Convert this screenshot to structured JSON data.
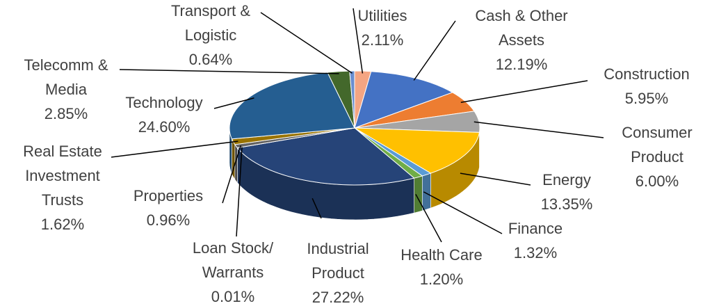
{
  "chart_data": {
    "type": "pie",
    "title": "",
    "style": "3d",
    "start": "12 o'clock",
    "direction": "clockwise",
    "slices": [
      {
        "name": "Utilities",
        "value": 2.11,
        "label": "Utilities",
        "value_label": "2.11%",
        "color": "#F4A582"
      },
      {
        "name": "Cash & Other Assets",
        "value": 12.19,
        "label": "Cash & Other|Assets",
        "value_label": "12.19%",
        "color": "#4472C4"
      },
      {
        "name": "Construction",
        "value": 5.95,
        "label": "Construction",
        "value_label": "5.95%",
        "color": "#ED7D31"
      },
      {
        "name": "Consumer Product",
        "value": 6.0,
        "label": "Consumer|Product",
        "value_label": "6.00%",
        "color": "#A5A5A5"
      },
      {
        "name": "Energy",
        "value": 13.35,
        "label": "Energy",
        "value_label": "13.35%",
        "color": "#FFC000"
      },
      {
        "name": "Finance",
        "value": 1.32,
        "label": "Finance",
        "value_label": "1.32%",
        "color": "#5B9BD5"
      },
      {
        "name": "Health Care",
        "value": 1.2,
        "label": "Health Care",
        "value_label": "1.20%",
        "color": "#70AD47"
      },
      {
        "name": "Industrial Product",
        "value": 27.22,
        "label": "Industrial|Product",
        "value_label": "27.22%",
        "color": "#264478"
      },
      {
        "name": "Loan Stock/ Warrants",
        "value": 0.01,
        "label": "Loan Stock/|Warrants",
        "value_label": "0.01%",
        "color": "#9E480E"
      },
      {
        "name": "Properties",
        "value": 0.96,
        "label": "Properties",
        "value_label": "0.96%",
        "color": "#636363"
      },
      {
        "name": "Real Estate Investment Trusts",
        "value": 1.62,
        "label": "Real Estate|Investment|Trusts",
        "value_label": "1.62%",
        "color": "#997300"
      },
      {
        "name": "Technology",
        "value": 24.6,
        "label": "Technology",
        "value_label": "24.60%",
        "color": "#255E91"
      },
      {
        "name": "Telecomm & Media",
        "value": 2.85,
        "label": "Telecomm &|Media",
        "value_label": "2.85%",
        "color": "#43682B"
      },
      {
        "name": "Transport & Logistic",
        "value": 0.64,
        "label": "Transport &|Logistic",
        "value_label": "0.64%",
        "color": "#698ED0"
      }
    ]
  }
}
